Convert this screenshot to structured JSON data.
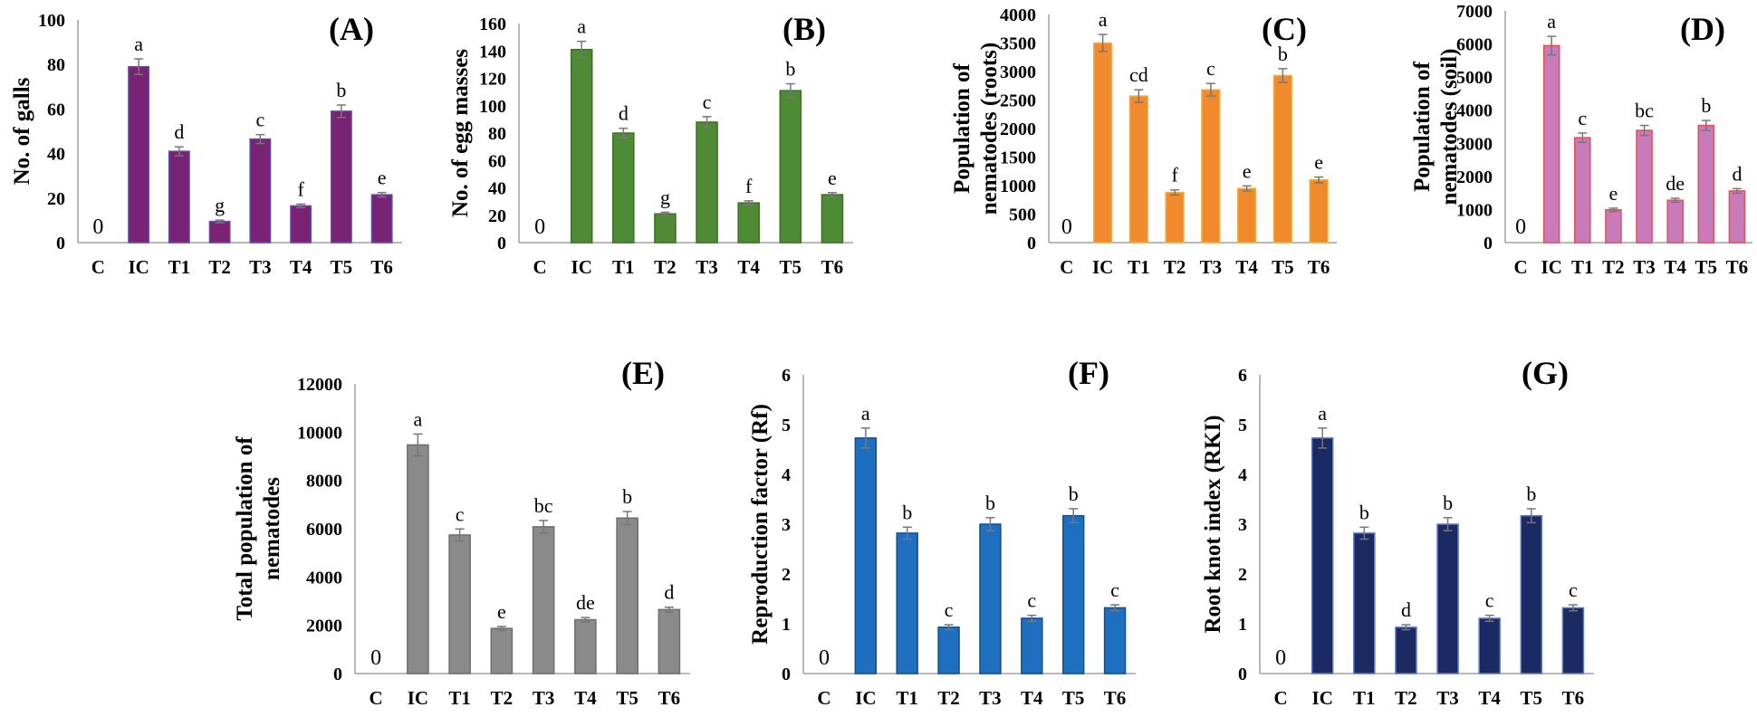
{
  "chart_data": [
    {
      "type": "bar",
      "panel_label": "(A)",
      "ylabel_lines": [
        "No. of galls"
      ],
      "categories": [
        "C",
        "IC",
        "T1",
        "T2",
        "T3",
        "T4",
        "T5",
        "T6"
      ],
      "values": [
        0,
        79,
        41,
        9.5,
        46.5,
        16.5,
        59,
        21.5
      ],
      "errors": [
        0,
        3.5,
        2,
        0.6,
        2,
        0.8,
        2.8,
        1
      ],
      "letters": [
        "0",
        "a",
        "d",
        "g",
        "c",
        "f",
        "b",
        "e"
      ],
      "ylim": [
        0,
        100
      ],
      "yticks": [
        0,
        20,
        40,
        60,
        80,
        100
      ],
      "color": "#7a2273",
      "edge": "#5b4fa8"
    },
    {
      "type": "bar",
      "panel_label": "(B)",
      "ylabel_lines": [
        "No. of egg masses"
      ],
      "categories": [
        "C",
        "IC",
        "T1",
        "T2",
        "T3",
        "T4",
        "T5",
        "T6"
      ],
      "values": [
        0,
        141,
        80,
        21,
        88,
        29,
        111,
        35
      ],
      "errors": [
        0,
        6,
        3.5,
        1.2,
        4,
        1.5,
        5,
        1.5
      ],
      "letters": [
        "0",
        "a",
        "d",
        "g",
        "c",
        "f",
        "b",
        "e"
      ],
      "ylim": [
        0,
        160
      ],
      "yticks": [
        0,
        20,
        40,
        60,
        80,
        100,
        120,
        140,
        160
      ],
      "color": "#4f8a34",
      "edge": "#3f6f2a"
    },
    {
      "type": "bar",
      "panel_label": "(C)",
      "ylabel_lines": [
        "Population of",
        "nematodes (roots)"
      ],
      "categories": [
        "C",
        "IC",
        "T1",
        "T2",
        "T3",
        "T4",
        "T5",
        "T6"
      ],
      "values": [
        0,
        3500,
        2570,
        880,
        2680,
        950,
        2930,
        1100
      ],
      "errors": [
        0,
        150,
        110,
        45,
        110,
        45,
        120,
        50
      ],
      "letters": [
        "0",
        "a",
        "cd",
        "f",
        "c",
        "e",
        "b",
        "e"
      ],
      "ylim": [
        0,
        4000
      ],
      "yticks": [
        0,
        500,
        1000,
        1500,
        2000,
        2500,
        3000,
        3500,
        4000
      ],
      "color": "#f08a2c",
      "edge": "#e8b34a"
    },
    {
      "type": "bar",
      "panel_label": "(D)",
      "ylabel_lines": [
        "Population of",
        "nematodes (soil)"
      ],
      "categories": [
        "C",
        "IC",
        "T1",
        "T2",
        "T3",
        "T4",
        "T5",
        "T6"
      ],
      "values": [
        0,
        5950,
        3170,
        990,
        3390,
        1280,
        3540,
        1560
      ],
      "errors": [
        0,
        280,
        140,
        50,
        150,
        60,
        150,
        70
      ],
      "letters": [
        "0",
        "a",
        "c",
        "e",
        "bc",
        "de",
        "b",
        "d"
      ],
      "ylim": [
        0,
        7000
      ],
      "yticks": [
        0,
        1000,
        2000,
        3000,
        4000,
        5000,
        6000,
        7000
      ],
      "color": "#c97ab8",
      "edge": "#e05252"
    },
    {
      "type": "bar",
      "panel_label": "(E)",
      "ylabel_lines": [
        "Total population of",
        "nematodes"
      ],
      "categories": [
        "C",
        "IC",
        "T1",
        "T2",
        "T3",
        "T4",
        "T5",
        "T6"
      ],
      "values": [
        0,
        9470,
        5740,
        1870,
        6080,
        2230,
        6440,
        2650
      ],
      "errors": [
        0,
        450,
        250,
        80,
        260,
        90,
        270,
        100
      ],
      "letters": [
        "0",
        "a",
        "c",
        "e",
        "bc",
        "de",
        "b",
        "d"
      ],
      "ylim": [
        0,
        12000
      ],
      "yticks": [
        0,
        2000,
        4000,
        6000,
        8000,
        10000,
        12000
      ],
      "color": "#8a8a8a",
      "edge": "#6e6e6e"
    },
    {
      "type": "bar",
      "panel_label": "(F)",
      "ylabel_lines": [
        "Reproduction factor (Rf)"
      ],
      "categories": [
        "C",
        "IC",
        "T1",
        "T2",
        "T3",
        "T4",
        "T5",
        "T6"
      ],
      "values": [
        0,
        4.73,
        2.82,
        0.93,
        3.0,
        1.11,
        3.17,
        1.32
      ],
      "errors": [
        0,
        0.2,
        0.12,
        0.05,
        0.13,
        0.06,
        0.14,
        0.06
      ],
      "letters": [
        "0",
        "a",
        "b",
        "c",
        "b",
        "c",
        "b",
        "c"
      ],
      "ylim": [
        0,
        6
      ],
      "yticks": [
        0,
        1,
        2,
        3,
        4,
        5,
        6
      ],
      "color": "#1f6fc0",
      "edge": "#124f8f"
    },
    {
      "type": "bar",
      "panel_label": "(G)",
      "ylabel_lines": [
        "Root knot index (RKI)"
      ],
      "categories": [
        "C",
        "IC",
        "T1",
        "T2",
        "T3",
        "T4",
        "T5",
        "T6"
      ],
      "values": [
        0,
        4.73,
        2.82,
        0.93,
        3.0,
        1.11,
        3.17,
        1.32
      ],
      "errors": [
        0,
        0.2,
        0.12,
        0.05,
        0.13,
        0.06,
        0.14,
        0.06
      ],
      "letters": [
        "0",
        "a",
        "b",
        "d",
        "b",
        "c",
        "b",
        "c"
      ],
      "ylim": [
        0,
        6
      ],
      "yticks": [
        0,
        1,
        2,
        3,
        4,
        5,
        6
      ],
      "color": "#1b2a63",
      "edge": "#5e7cc4"
    }
  ]
}
